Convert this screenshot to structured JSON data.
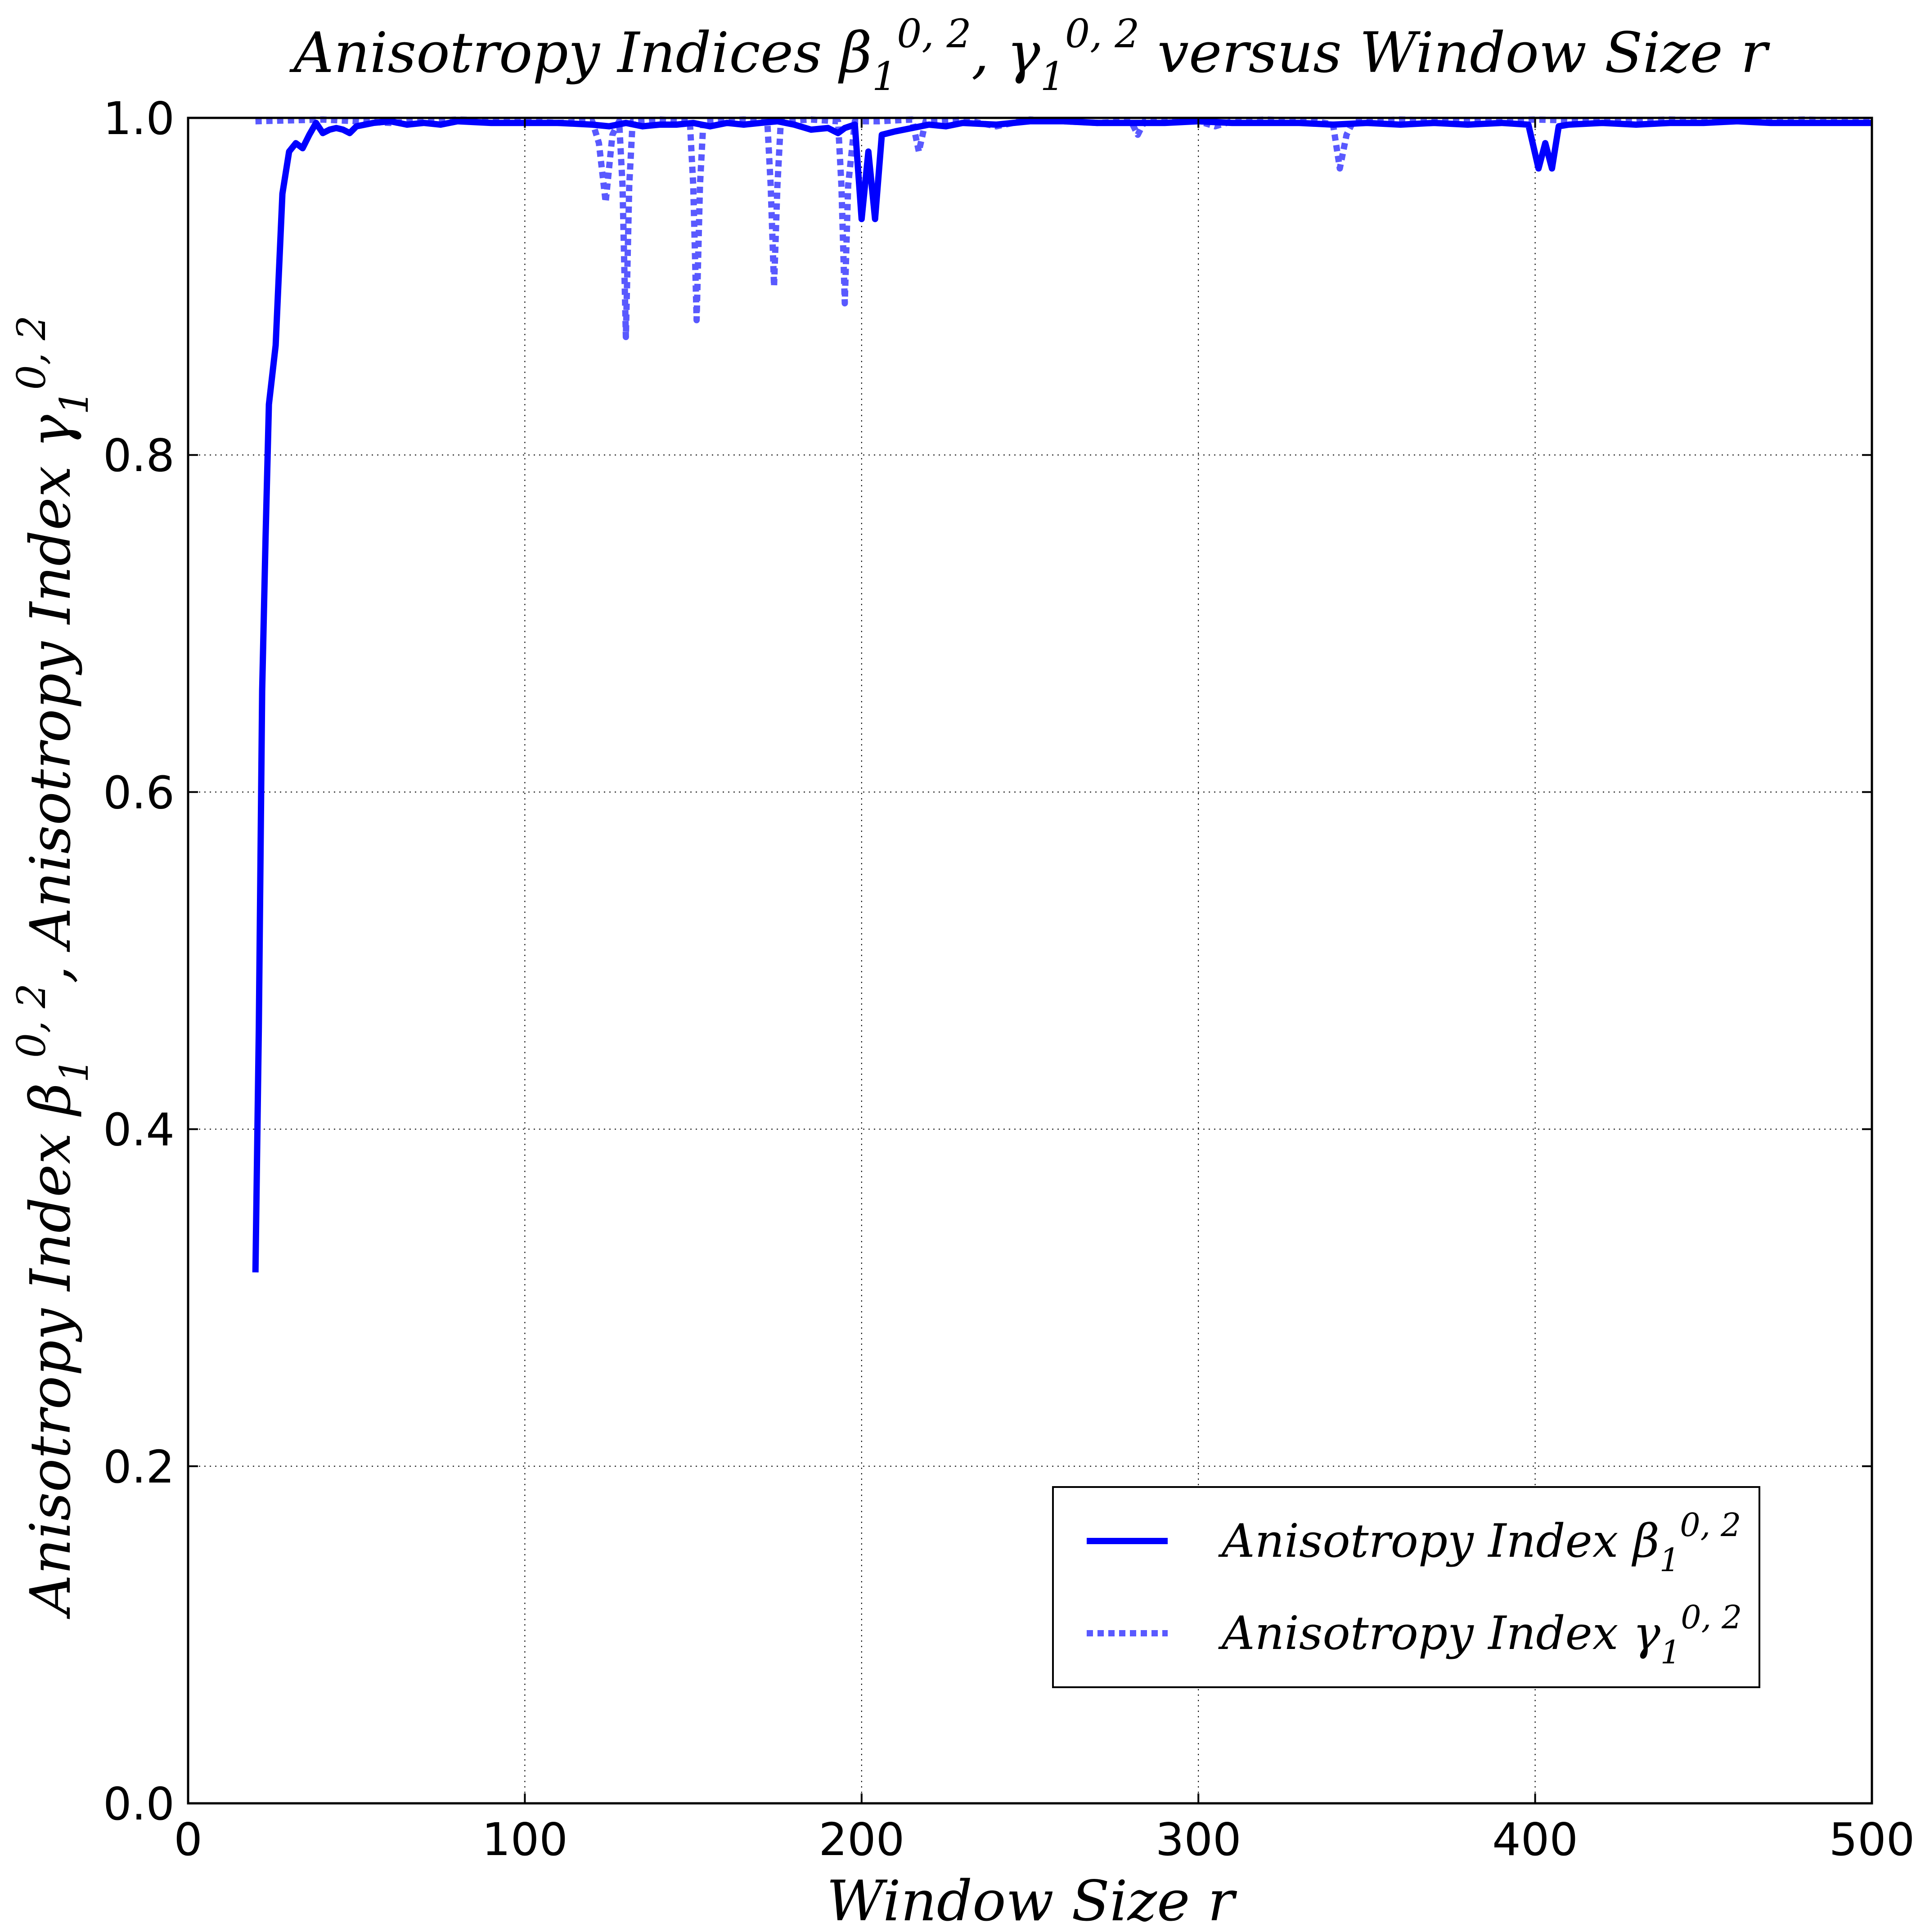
{
  "chart_data": {
    "type": "line",
    "title": {
      "main": "Anisotropy Indices β",
      "sub1": "1",
      "sup1": "0, 2",
      "mid": ", γ",
      "sub2": "1",
      "sup2": "0, 2",
      "end": " versus Window Size r"
    },
    "xlabel": "Window Size r",
    "ylabel": {
      "part1": "Anisotropy Index β",
      "sub1": "1",
      "sup1": "0, 2",
      "sep": ",  Anisotropy Index γ",
      "sub2": "1",
      "sup2": "0, 2"
    },
    "xlim": [
      0,
      500
    ],
    "ylim": [
      0.0,
      1.0
    ],
    "xticks": [
      "0",
      "100",
      "200",
      "300",
      "400",
      "500"
    ],
    "yticks": [
      "0.0",
      "0.2",
      "0.4",
      "0.6",
      "0.8",
      "1.0"
    ],
    "grid": true,
    "legend_position": "lower-right",
    "series": [
      {
        "name": "Anisotropy Index β",
        "name_sub": "1",
        "name_sup": "0, 2",
        "style": "solid",
        "color": "#0000ff",
        "points": [
          [
            20,
            0.315
          ],
          [
            21,
            0.46
          ],
          [
            22,
            0.66
          ],
          [
            23,
            0.75
          ],
          [
            24,
            0.83
          ],
          [
            26,
            0.865
          ],
          [
            28,
            0.955
          ],
          [
            30,
            0.98
          ],
          [
            32,
            0.985
          ],
          [
            34,
            0.982
          ],
          [
            36,
            0.99
          ],
          [
            38,
            0.997
          ],
          [
            40,
            0.991
          ],
          [
            42,
            0.993
          ],
          [
            44,
            0.994
          ],
          [
            46,
            0.993
          ],
          [
            48,
            0.991
          ],
          [
            50,
            0.995
          ],
          [
            55,
            0.997
          ],
          [
            60,
            0.998
          ],
          [
            65,
            0.996
          ],
          [
            70,
            0.997
          ],
          [
            75,
            0.996
          ],
          [
            80,
            0.998
          ],
          [
            90,
            0.997
          ],
          [
            100,
            0.997
          ],
          [
            110,
            0.997
          ],
          [
            120,
            0.996
          ],
          [
            125,
            0.995
          ],
          [
            130,
            0.997
          ],
          [
            135,
            0.995
          ],
          [
            140,
            0.996
          ],
          [
            145,
            0.996
          ],
          [
            150,
            0.997
          ],
          [
            155,
            0.995
          ],
          [
            160,
            0.997
          ],
          [
            165,
            0.996
          ],
          [
            170,
            0.997
          ],
          [
            175,
            0.998
          ],
          [
            180,
            0.996
          ],
          [
            185,
            0.993
          ],
          [
            190,
            0.994
          ],
          [
            193,
            0.991
          ],
          [
            195,
            0.994
          ],
          [
            198,
            0.996
          ],
          [
            200,
            0.94
          ],
          [
            202,
            0.98
          ],
          [
            204,
            0.94
          ],
          [
            206,
            0.99
          ],
          [
            210,
            0.992
          ],
          [
            215,
            0.994
          ],
          [
            220,
            0.996
          ],
          [
            225,
            0.995
          ],
          [
            230,
            0.997
          ],
          [
            240,
            0.996
          ],
          [
            250,
            0.998
          ],
          [
            260,
            0.998
          ],
          [
            270,
            0.997
          ],
          [
            280,
            0.997
          ],
          [
            290,
            0.997
          ],
          [
            300,
            0.998
          ],
          [
            310,
            0.997
          ],
          [
            320,
            0.997
          ],
          [
            330,
            0.997
          ],
          [
            340,
            0.996
          ],
          [
            350,
            0.997
          ],
          [
            360,
            0.996
          ],
          [
            370,
            0.997
          ],
          [
            380,
            0.996
          ],
          [
            390,
            0.997
          ],
          [
            398,
            0.996
          ],
          [
            401,
            0.97
          ],
          [
            403,
            0.985
          ],
          [
            405,
            0.97
          ],
          [
            407,
            0.995
          ],
          [
            410,
            0.996
          ],
          [
            420,
            0.997
          ],
          [
            430,
            0.996
          ],
          [
            440,
            0.997
          ],
          [
            450,
            0.997
          ],
          [
            460,
            0.998
          ],
          [
            470,
            0.997
          ],
          [
            480,
            0.997
          ],
          [
            490,
            0.997
          ],
          [
            500,
            0.997
          ]
        ]
      },
      {
        "name": "Anisotropy Index γ",
        "name_sub": "1",
        "name_sup": "0, 2",
        "style": "dashed",
        "color": "#0000ff",
        "opacity": 0.65,
        "points": [
          [
            20,
            0.998
          ],
          [
            40,
            0.999
          ],
          [
            60,
            0.997
          ],
          [
            80,
            0.999
          ],
          [
            100,
            0.998
          ],
          [
            110,
            0.997
          ],
          [
            120,
            0.998
          ],
          [
            122,
            0.985
          ],
          [
            124,
            0.95
          ],
          [
            126,
            0.99
          ],
          [
            128,
            0.998
          ],
          [
            129,
            0.96
          ],
          [
            130,
            0.87
          ],
          [
            131,
            0.96
          ],
          [
            132,
            0.998
          ],
          [
            140,
            0.999
          ],
          [
            149,
            0.998
          ],
          [
            150,
            0.96
          ],
          [
            151,
            0.88
          ],
          [
            152,
            0.96
          ],
          [
            153,
            0.998
          ],
          [
            165,
            0.999
          ],
          [
            172,
            0.998
          ],
          [
            173,
            0.96
          ],
          [
            174,
            0.9
          ],
          [
            175,
            0.96
          ],
          [
            176,
            0.998
          ],
          [
            185,
            0.999
          ],
          [
            193,
            0.998
          ],
          [
            194,
            0.96
          ],
          [
            195,
            0.89
          ],
          [
            196,
            0.96
          ],
          [
            198,
            0.998
          ],
          [
            205,
            0.998
          ],
          [
            215,
            0.999
          ],
          [
            217,
            0.98
          ],
          [
            219,
            0.998
          ],
          [
            230,
            0.999
          ],
          [
            240,
            0.995
          ],
          [
            250,
            0.999
          ],
          [
            260,
            0.998
          ],
          [
            270,
            0.997
          ],
          [
            280,
            0.998
          ],
          [
            282,
            0.99
          ],
          [
            284,
            0.998
          ],
          [
            300,
            0.998
          ],
          [
            305,
            0.995
          ],
          [
            310,
            0.998
          ],
          [
            320,
            0.999
          ],
          [
            335,
            0.998
          ],
          [
            340,
            0.996
          ],
          [
            342,
            0.97
          ],
          [
            344,
            0.99
          ],
          [
            346,
            0.998
          ],
          [
            360,
            0.999
          ],
          [
            380,
            0.998
          ],
          [
            400,
            0.999
          ],
          [
            420,
            0.998
          ],
          [
            440,
            0.999
          ],
          [
            460,
            0.998
          ],
          [
            480,
            0.999
          ],
          [
            500,
            0.998
          ]
        ]
      }
    ]
  }
}
